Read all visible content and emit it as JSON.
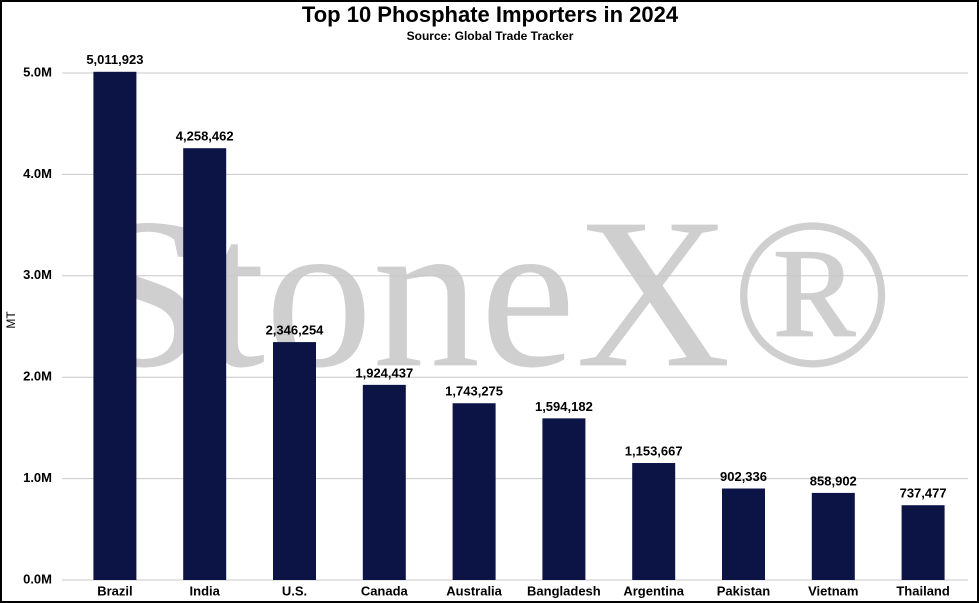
{
  "chart_data": {
    "type": "bar",
    "title": "Top 10 Phosphate Importers in 2024",
    "subtitle": "Source: Global Trade Tracker",
    "y_label": "MT",
    "watermark": "StoneX®",
    "categories": [
      "Brazil",
      "India",
      "U.S.",
      "Canada",
      "Australia",
      "Bangladesh",
      "Argentina",
      "Pakistan",
      "Vietnam",
      "Thailand"
    ],
    "values": [
      5011923,
      4258462,
      2346254,
      1924437,
      1743275,
      1594182,
      1153667,
      902336,
      858902,
      737477
    ],
    "value_labels": [
      "5,011,923",
      "4,258,462",
      "2,346,254",
      "1,924,437",
      "1,743,275",
      "1,594,182",
      "1,153,667",
      "902,336",
      "858,902",
      "737,477"
    ],
    "color": "#0c1445",
    "ylim": [
      0,
      5000000
    ],
    "yticks": [
      {
        "value": 0,
        "label": "0.0M"
      },
      {
        "value": 1000000,
        "label": "1.0M"
      },
      {
        "value": 2000000,
        "label": "2.0M"
      },
      {
        "value": 3000000,
        "label": "3.0M"
      },
      {
        "value": 4000000,
        "label": "4.0M"
      },
      {
        "value": 5000000,
        "label": "5.0M"
      }
    ],
    "grid": true
  }
}
